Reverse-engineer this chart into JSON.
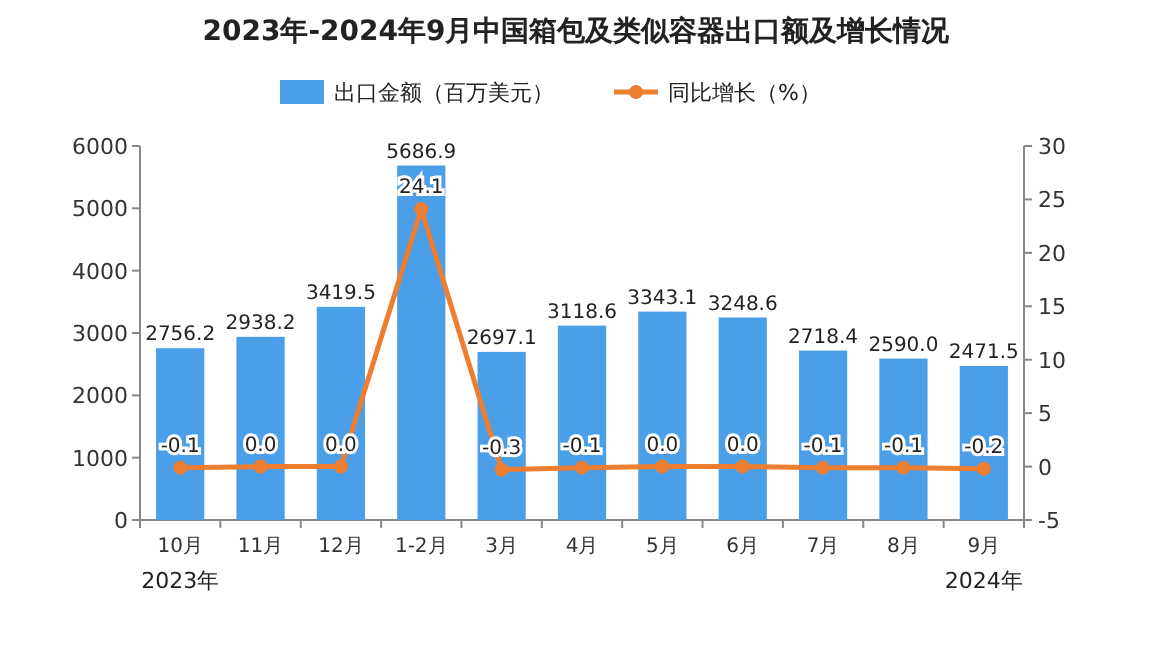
{
  "chart_data": {
    "type": "bar",
    "title": "2023年-2024年9月中国箱包及类似容器出口额及增长情况",
    "categories": [
      "10月",
      "11月",
      "12月",
      "1-2月",
      "3月",
      "4月",
      "5月",
      "6月",
      "7月",
      "8月",
      "9月"
    ],
    "series": [
      {
        "name": "出口金额（百万美元）",
        "color": "#4a9fe8",
        "values": [
          2756.2,
          2938.2,
          3419.5,
          5686.9,
          2697.1,
          3118.6,
          3343.1,
          3248.6,
          2718.4,
          2590.0,
          2471.5
        ],
        "value_labels": [
          "2756.2",
          "2938.2",
          "3419.5",
          "5686.9",
          "2697.1",
          "3118.6",
          "3343.1",
          "3248.6",
          "2718.4",
          "2590.0",
          "2471.5"
        ]
      },
      {
        "name": "同比增长（%）",
        "type": "line",
        "axis": "y2",
        "color": "#ed7d31",
        "marker": "circle",
        "values": [
          -0.1,
          0.0,
          0.0,
          24.1,
          -0.3,
          -0.1,
          0.0,
          0.0,
          -0.1,
          -0.1,
          -0.2
        ],
        "value_labels": [
          "-0.1",
          "0.0",
          "0.0",
          "24.1",
          "-0.3",
          "-0.1",
          "0.0",
          "0.0",
          "-0.1",
          "-0.1",
          "-0.2"
        ]
      }
    ],
    "ylim": [
      0,
      6000
    ],
    "yticks": [
      0,
      1000,
      2000,
      3000,
      4000,
      5000,
      6000
    ],
    "y2lim": [
      -5,
      30
    ],
    "y2ticks": [
      -5,
      0,
      5,
      10,
      15,
      20,
      25,
      30
    ],
    "legend": "top",
    "grid": false,
    "annotations": [
      "2023年",
      "2024年"
    ]
  }
}
